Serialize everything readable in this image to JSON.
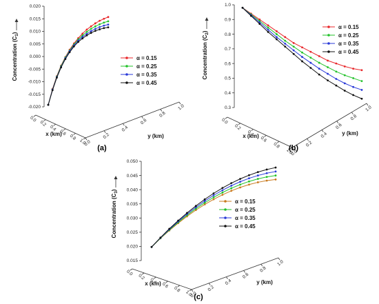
{
  "chart_data": [
    {
      "type": "line",
      "panel_label": "(a)",
      "zlabel": "Concentration (C",
      "zlabel_sub": "1",
      "xlabel": "x (km)",
      "ylabel": "y (km)",
      "zlim": [
        -0.02,
        0.02
      ],
      "zticks": [
        "-0.020",
        "-0.015",
        "-0.010",
        "-0.005",
        "0.000",
        "0.005",
        "0.010",
        "0.015",
        "0.020"
      ],
      "xticks": [
        "0.0",
        "0.2",
        "0.4",
        "0.6",
        "0.8",
        "1.0"
      ],
      "yticks": [
        "0.0",
        "0.2",
        "0.4",
        "0.6",
        "0.8",
        "1.0"
      ],
      "legend_position": "right",
      "x": [
        0.0,
        0.0714,
        0.1429,
        0.2143,
        0.2857,
        0.3571,
        0.4286,
        0.5,
        0.5714,
        0.6429,
        0.7143,
        0.7857,
        0.8571,
        0.9286,
        1.0
      ],
      "series": [
        {
          "name": "α = 0.15",
          "color": "#e8262a",
          "values": [
            -0.0192,
            -0.0129,
            -0.0078,
            -0.0036,
            -0.0002,
            0.0027,
            0.0052,
            0.0073,
            0.0091,
            0.0107,
            0.012,
            0.0132,
            0.0142,
            0.015,
            0.0157
          ]
        },
        {
          "name": "α = 0.25",
          "color": "#22c22a",
          "values": [
            -0.0192,
            -0.0131,
            -0.008,
            -0.0038,
            -0.0004,
            0.0024,
            0.0048,
            0.0068,
            0.0084,
            0.0098,
            0.011,
            0.012,
            0.0128,
            0.0135,
            0.014
          ]
        },
        {
          "name": "α = 0.35",
          "color": "#2a3ad8",
          "values": [
            -0.0192,
            -0.0132,
            -0.0082,
            -0.0041,
            -0.0007,
            0.0021,
            0.0044,
            0.0063,
            0.0078,
            0.009,
            0.0101,
            0.011,
            0.0117,
            0.0123,
            0.0127
          ]
        },
        {
          "name": "α = 0.45",
          "color": "#111111",
          "values": [
            -0.0192,
            -0.0134,
            -0.0084,
            -0.0043,
            -0.001,
            0.0017,
            0.004,
            0.0058,
            0.0072,
            0.0084,
            0.0094,
            0.0102,
            0.0108,
            0.0113,
            0.0116
          ]
        }
      ]
    },
    {
      "type": "line",
      "panel_label": "(b)",
      "zlabel": "Concentration (C",
      "zlabel_sub": "2",
      "xlabel": "x (km)",
      "ylabel": "y (km)",
      "zlim": [
        0.3,
        1.0
      ],
      "zticks": [
        "0.3",
        "0.4",
        "0.5",
        "0.6",
        "0.7",
        "0.8",
        "0.9",
        "1.0"
      ],
      "xticks": [
        "0.0",
        "0.2",
        "0.4",
        "0.6",
        "0.8",
        "1.0"
      ],
      "yticks": [
        "0.0",
        "0.2",
        "0.4",
        "0.6",
        "0.8",
        "1.0"
      ],
      "legend_position": "top-right",
      "x": [
        0.0,
        0.0714,
        0.1429,
        0.2143,
        0.2857,
        0.3571,
        0.4286,
        0.5,
        0.5714,
        0.6429,
        0.7143,
        0.7857,
        0.8571,
        0.9286,
        1.0
      ],
      "series": [
        {
          "name": "α = 0.15",
          "color": "#e8262a",
          "values": [
            0.98,
            0.94,
            0.9,
            0.86,
            0.82,
            0.78,
            0.74,
            0.71,
            0.68,
            0.65,
            0.62,
            0.6,
            0.58,
            0.565,
            0.555
          ]
        },
        {
          "name": "α = 0.25",
          "color": "#22c22a",
          "values": [
            0.98,
            0.935,
            0.89,
            0.845,
            0.8,
            0.755,
            0.715,
            0.675,
            0.64,
            0.605,
            0.575,
            0.545,
            0.52,
            0.5,
            0.48
          ]
        },
        {
          "name": "α = 0.35",
          "color": "#2a3ad8",
          "values": [
            0.98,
            0.93,
            0.88,
            0.83,
            0.78,
            0.735,
            0.69,
            0.645,
            0.605,
            0.565,
            0.53,
            0.495,
            0.465,
            0.44,
            0.42
          ]
        },
        {
          "name": "α = 0.45",
          "color": "#111111",
          "values": [
            0.98,
            0.925,
            0.87,
            0.815,
            0.765,
            0.715,
            0.665,
            0.615,
            0.57,
            0.525,
            0.485,
            0.45,
            0.415,
            0.385,
            0.36
          ]
        }
      ]
    },
    {
      "type": "line",
      "panel_label": "(c)",
      "zlabel": "Concentration (C",
      "zlabel_sub": "3",
      "xlabel": "x (km)",
      "ylabel": "y (km)",
      "zlim": [
        0.015,
        0.05
      ],
      "zticks": [
        "0.015",
        "0.020",
        "0.025",
        "0.030",
        "0.035",
        "0.040",
        "0.045",
        "0.050"
      ],
      "xticks": [
        "0.0",
        "0.2",
        "0.4",
        "0.6",
        "0.8",
        "1.0"
      ],
      "yticks": [
        "0.0",
        "0.2",
        "0.4",
        "0.6",
        "0.8",
        "1.0"
      ],
      "legend_position": "right",
      "x": [
        0.0,
        0.0714,
        0.1429,
        0.2143,
        0.2857,
        0.3571,
        0.4286,
        0.5,
        0.5714,
        0.6429,
        0.7143,
        0.7857,
        0.8571,
        0.9286,
        1.0
      ],
      "series": [
        {
          "name": "α = 0.15",
          "color": "#c87a1e",
          "values": [
            0.0198,
            0.0228,
            0.0256,
            0.0282,
            0.0306,
            0.0328,
            0.0348,
            0.0366,
            0.0382,
            0.0396,
            0.0408,
            0.0418,
            0.0426,
            0.0432,
            0.0436
          ]
        },
        {
          "name": "α = 0.25",
          "color": "#22c22a",
          "values": [
            0.0198,
            0.0229,
            0.0258,
            0.0285,
            0.031,
            0.0333,
            0.0354,
            0.0373,
            0.039,
            0.0405,
            0.0418,
            0.0429,
            0.0438,
            0.0445,
            0.045
          ]
        },
        {
          "name": "α = 0.35",
          "color": "#2a3ad8",
          "values": [
            0.0198,
            0.023,
            0.026,
            0.0288,
            0.0314,
            0.0338,
            0.036,
            0.038,
            0.0398,
            0.0414,
            0.0428,
            0.044,
            0.045,
            0.0458,
            0.0464
          ]
        },
        {
          "name": "α = 0.45",
          "color": "#111111",
          "values": [
            0.0198,
            0.0231,
            0.0262,
            0.0291,
            0.0318,
            0.0343,
            0.0366,
            0.0387,
            0.0406,
            0.0423,
            0.0438,
            0.0451,
            0.0462,
            0.0471,
            0.0478
          ]
        }
      ]
    }
  ]
}
